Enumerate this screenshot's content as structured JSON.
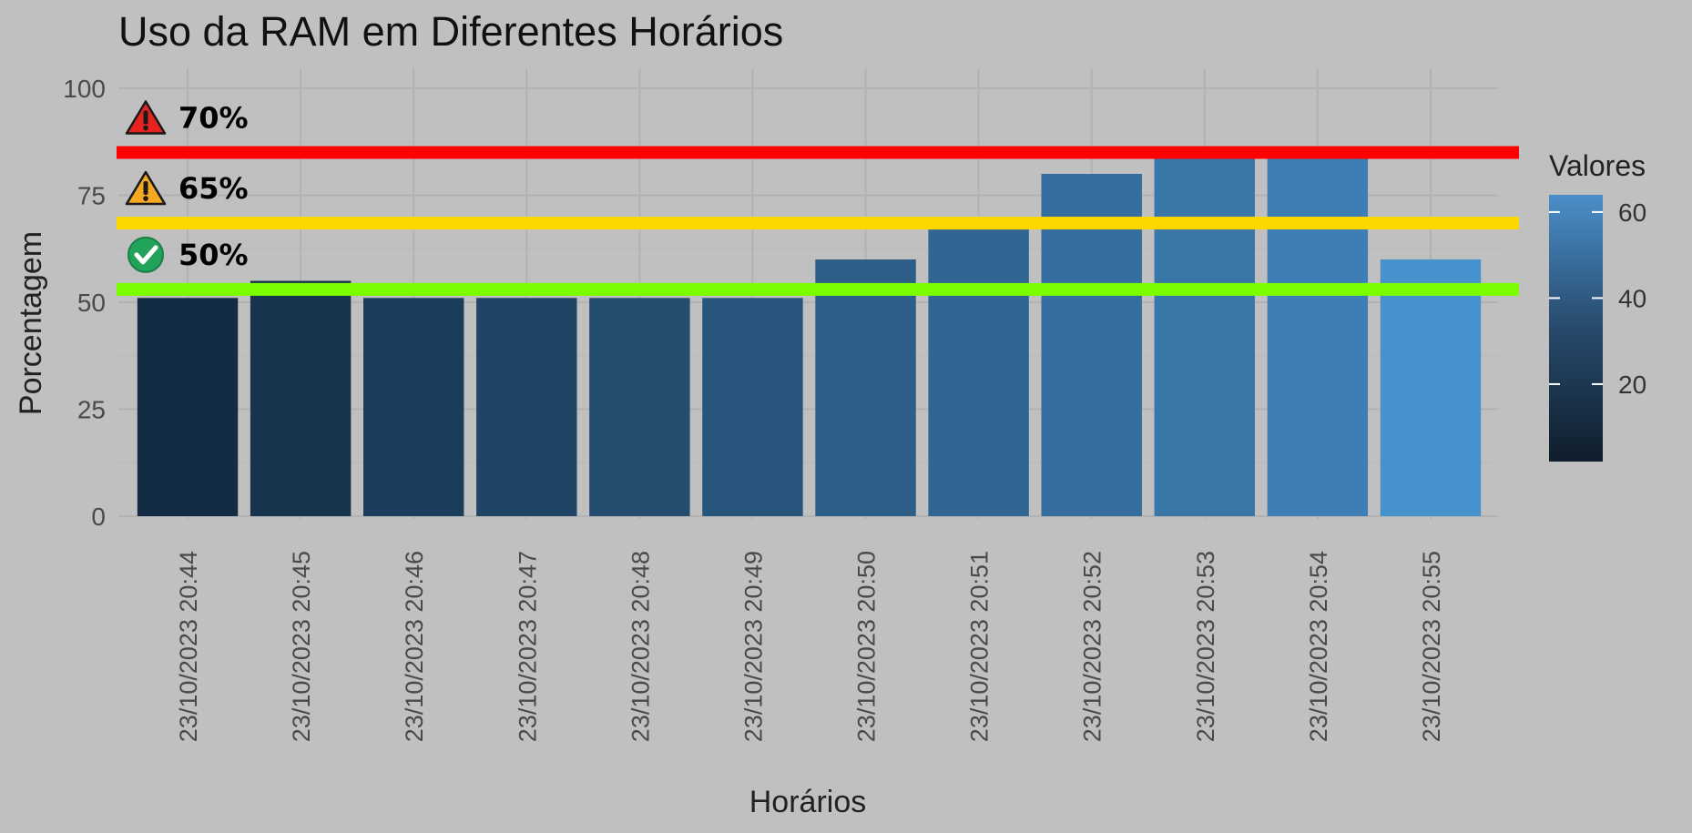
{
  "chart_data": {
    "type": "bar",
    "title": "Uso da RAM em Diferentes Horários",
    "xlabel": "Horários",
    "ylabel": "Porcentagem",
    "ylim": [
      0,
      100
    ],
    "y_ticks": [
      0,
      25,
      50,
      75,
      100
    ],
    "grid": true,
    "categories": [
      "23/10/2023 20:44",
      "23/10/2023 20:45",
      "23/10/2023 20:46",
      "23/10/2023 20:47",
      "23/10/2023 20:48",
      "23/10/2023 20:49",
      "23/10/2023 20:50",
      "23/10/2023 20:51",
      "23/10/2023 20:52",
      "23/10/2023 20:53",
      "23/10/2023 20:54",
      "23/10/2023 20:55"
    ],
    "values": [
      51,
      55,
      51,
      51,
      51,
      51,
      60,
      67,
      80,
      84,
      84,
      60
    ],
    "fill_values": [
      2,
      7,
      12,
      17,
      22,
      27,
      32,
      37,
      42,
      47,
      52,
      63
    ],
    "legend": {
      "title": "Valores",
      "ticks": [
        20,
        40,
        60
      ],
      "range": [
        2,
        64
      ],
      "placement": "right",
      "color_low": "#132b43",
      "color_high": "#56b1f7"
    },
    "thresholds": [
      {
        "label": "70%",
        "value": 85,
        "color": "#ff0000",
        "icon": "warning-red-icon"
      },
      {
        "label": "65%",
        "value": 68.5,
        "color": "#ffd700",
        "icon": "warning-orange-icon"
      },
      {
        "label": "50%",
        "value": 53,
        "color": "#7cfc00",
        "icon": "check-green-icon"
      }
    ]
  }
}
